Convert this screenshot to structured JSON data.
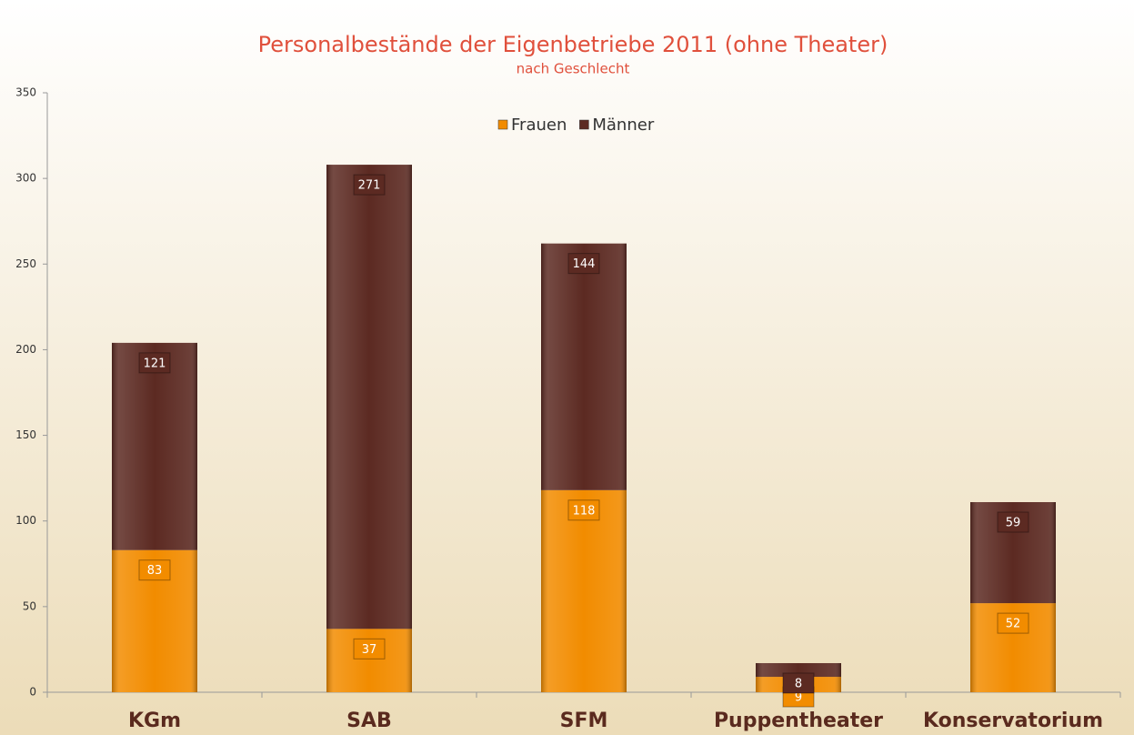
{
  "chart_data": {
    "type": "stacked_bar",
    "title": "Personalbestände der Eigenbetriebe 2011 (ohne Theater)",
    "subtitle": "nach Geschlecht",
    "categories": [
      "KGm",
      "SAB",
      "SFM",
      "Puppentheater",
      "Konservatorium"
    ],
    "series": [
      {
        "name": "Frauen",
        "color": "#f28c00",
        "values": [
          83,
          37,
          118,
          9,
          52
        ]
      },
      {
        "name": "Männer",
        "color": "#5c2a22",
        "values": [
          121,
          271,
          144,
          8,
          59
        ]
      }
    ],
    "ylim": [
      0,
      350
    ],
    "yticks": [
      0,
      50,
      100,
      150,
      200,
      250,
      300,
      350
    ],
    "legend": "top"
  }
}
